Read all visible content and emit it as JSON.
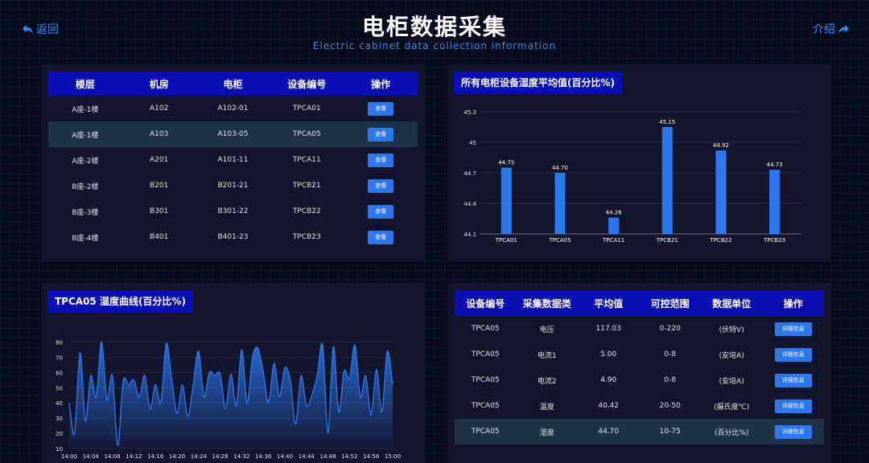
{
  "header": {
    "title": "电柜数据采集",
    "subtitle": "Electric cabinet data collection information",
    "back_label": "返回",
    "intro_label": "介绍"
  },
  "cabinet_table": {
    "columns": [
      "楼层",
      "机房",
      "电柜",
      "设备编号",
      "操作"
    ],
    "rows": [
      {
        "floor": "A座-1楼",
        "room": "A102",
        "cabinet": "A102-01",
        "device": "TPCA01",
        "action": "查看"
      },
      {
        "floor": "A座-1楼",
        "room": "A103",
        "cabinet": "A103-05",
        "device": "TPCA05",
        "action": "查看"
      },
      {
        "floor": "A座-2楼",
        "room": "A201",
        "cabinet": "A101-11",
        "device": "TPCA11",
        "action": "查看"
      },
      {
        "floor": "B座-2楼",
        "room": "B201",
        "cabinet": "B201-21",
        "device": "TPCB21",
        "action": "查看"
      },
      {
        "floor": "B座-3楼",
        "room": "B301",
        "cabinet": "B301-22",
        "device": "TPCB22",
        "action": "查看"
      },
      {
        "floor": "B座-4楼",
        "room": "B401",
        "cabinet": "B401-23",
        "device": "TPCB23",
        "action": "查看"
      }
    ]
  },
  "bar_panel": {
    "title": "所有电柜设备湿度平均值(百分比%)"
  },
  "line_panel": {
    "title": "TPCA05 湿度曲线(百分比%)"
  },
  "data_table": {
    "columns": [
      "设备编号",
      "采集数据类",
      "平均值",
      "可控范围",
      "数据单位",
      "操作"
    ],
    "rows": [
      {
        "device": "TPCA05",
        "type": "电压",
        "avg": "117.03",
        "range": "0-220",
        "unit": "(伏特V)",
        "action": "详细信息"
      },
      {
        "device": "TPCA05",
        "type": "电流1",
        "avg": "5.00",
        "range": "0-8",
        "unit": "(安培A)",
        "action": "详细信息"
      },
      {
        "device": "TPCA05",
        "type": "电流2",
        "avg": "4.90",
        "range": "0-8",
        "unit": "(安培A)",
        "action": "详细信息"
      },
      {
        "device": "TPCA05",
        "type": "温度",
        "avg": "40.42",
        "range": "20-50",
        "unit": "(摄氏度℃)",
        "action": "详细信息"
      },
      {
        "device": "TPCA05",
        "type": "湿度",
        "avg": "44.70",
        "range": "10-75",
        "unit": "(百分比%)",
        "action": "详细信息"
      }
    ]
  },
  "colors": {
    "accent": "#2c79f0",
    "header_bg": "#0b10b5",
    "panel_bg": "#12152c",
    "highlight_row": "#1e3345"
  },
  "chart_data": [
    {
      "type": "bar",
      "title": "所有电柜设备湿度平均值(百分比%)",
      "categories": [
        "TPCA01",
        "TPCA05",
        "TPCA11",
        "TPCB21",
        "TPCB22",
        "TPCB23"
      ],
      "values": [
        44.75,
        44.7,
        44.26,
        45.15,
        44.92,
        44.73
      ],
      "value_labels": [
        "44.75",
        "44.70",
        "44.26",
        "45.15",
        "44.92",
        "44.73"
      ],
      "ylim": [
        44.1,
        45.3
      ],
      "yticks": [
        "44.1",
        "44.4",
        "44.7",
        "45",
        "45.3"
      ],
      "grid": true,
      "color": "#2c79f0"
    },
    {
      "type": "area",
      "title": "TPCA05 湿度曲线(百分比%)",
      "x_ticks": [
        "14:00",
        "14:04",
        "14:08",
        "14:12",
        "14:16",
        "14:20",
        "14:24",
        "14:28",
        "14:32",
        "14:36",
        "14:40",
        "14:44",
        "14:48",
        "14:52",
        "14:56",
        "15:00"
      ],
      "y_ticks": [
        "10",
        "20",
        "30",
        "40",
        "50",
        "60",
        "70",
        "80"
      ],
      "ylim": [
        10,
        85
      ],
      "x_minutes": [
        0,
        1,
        2,
        3,
        4,
        5,
        6,
        7,
        8,
        9,
        10,
        11,
        12,
        13,
        14,
        15,
        16,
        17,
        18,
        19,
        20,
        21,
        22,
        23,
        24,
        25,
        26,
        27,
        28,
        29,
        30,
        31,
        32,
        33,
        34,
        35,
        36,
        37,
        38,
        39,
        40,
        41,
        42,
        43,
        44,
        45,
        46,
        47,
        48,
        49,
        50,
        51,
        52,
        53,
        54,
        55,
        56,
        57,
        58,
        59,
        60
      ],
      "values": [
        40,
        20,
        73,
        28,
        58,
        44,
        80,
        42,
        58,
        12,
        54,
        52,
        55,
        44,
        58,
        36,
        52,
        40,
        79,
        56,
        33,
        52,
        31,
        52,
        74,
        44,
        60,
        58,
        59,
        36,
        59,
        38,
        75,
        40,
        70,
        76,
        60,
        40,
        66,
        44,
        63,
        55,
        26,
        58,
        38,
        45,
        58,
        78,
        20,
        77,
        34,
        61,
        56,
        78,
        44,
        58,
        32,
        62,
        34,
        74,
        52
      ],
      "grid": true,
      "color": "#2c79f0"
    }
  ]
}
